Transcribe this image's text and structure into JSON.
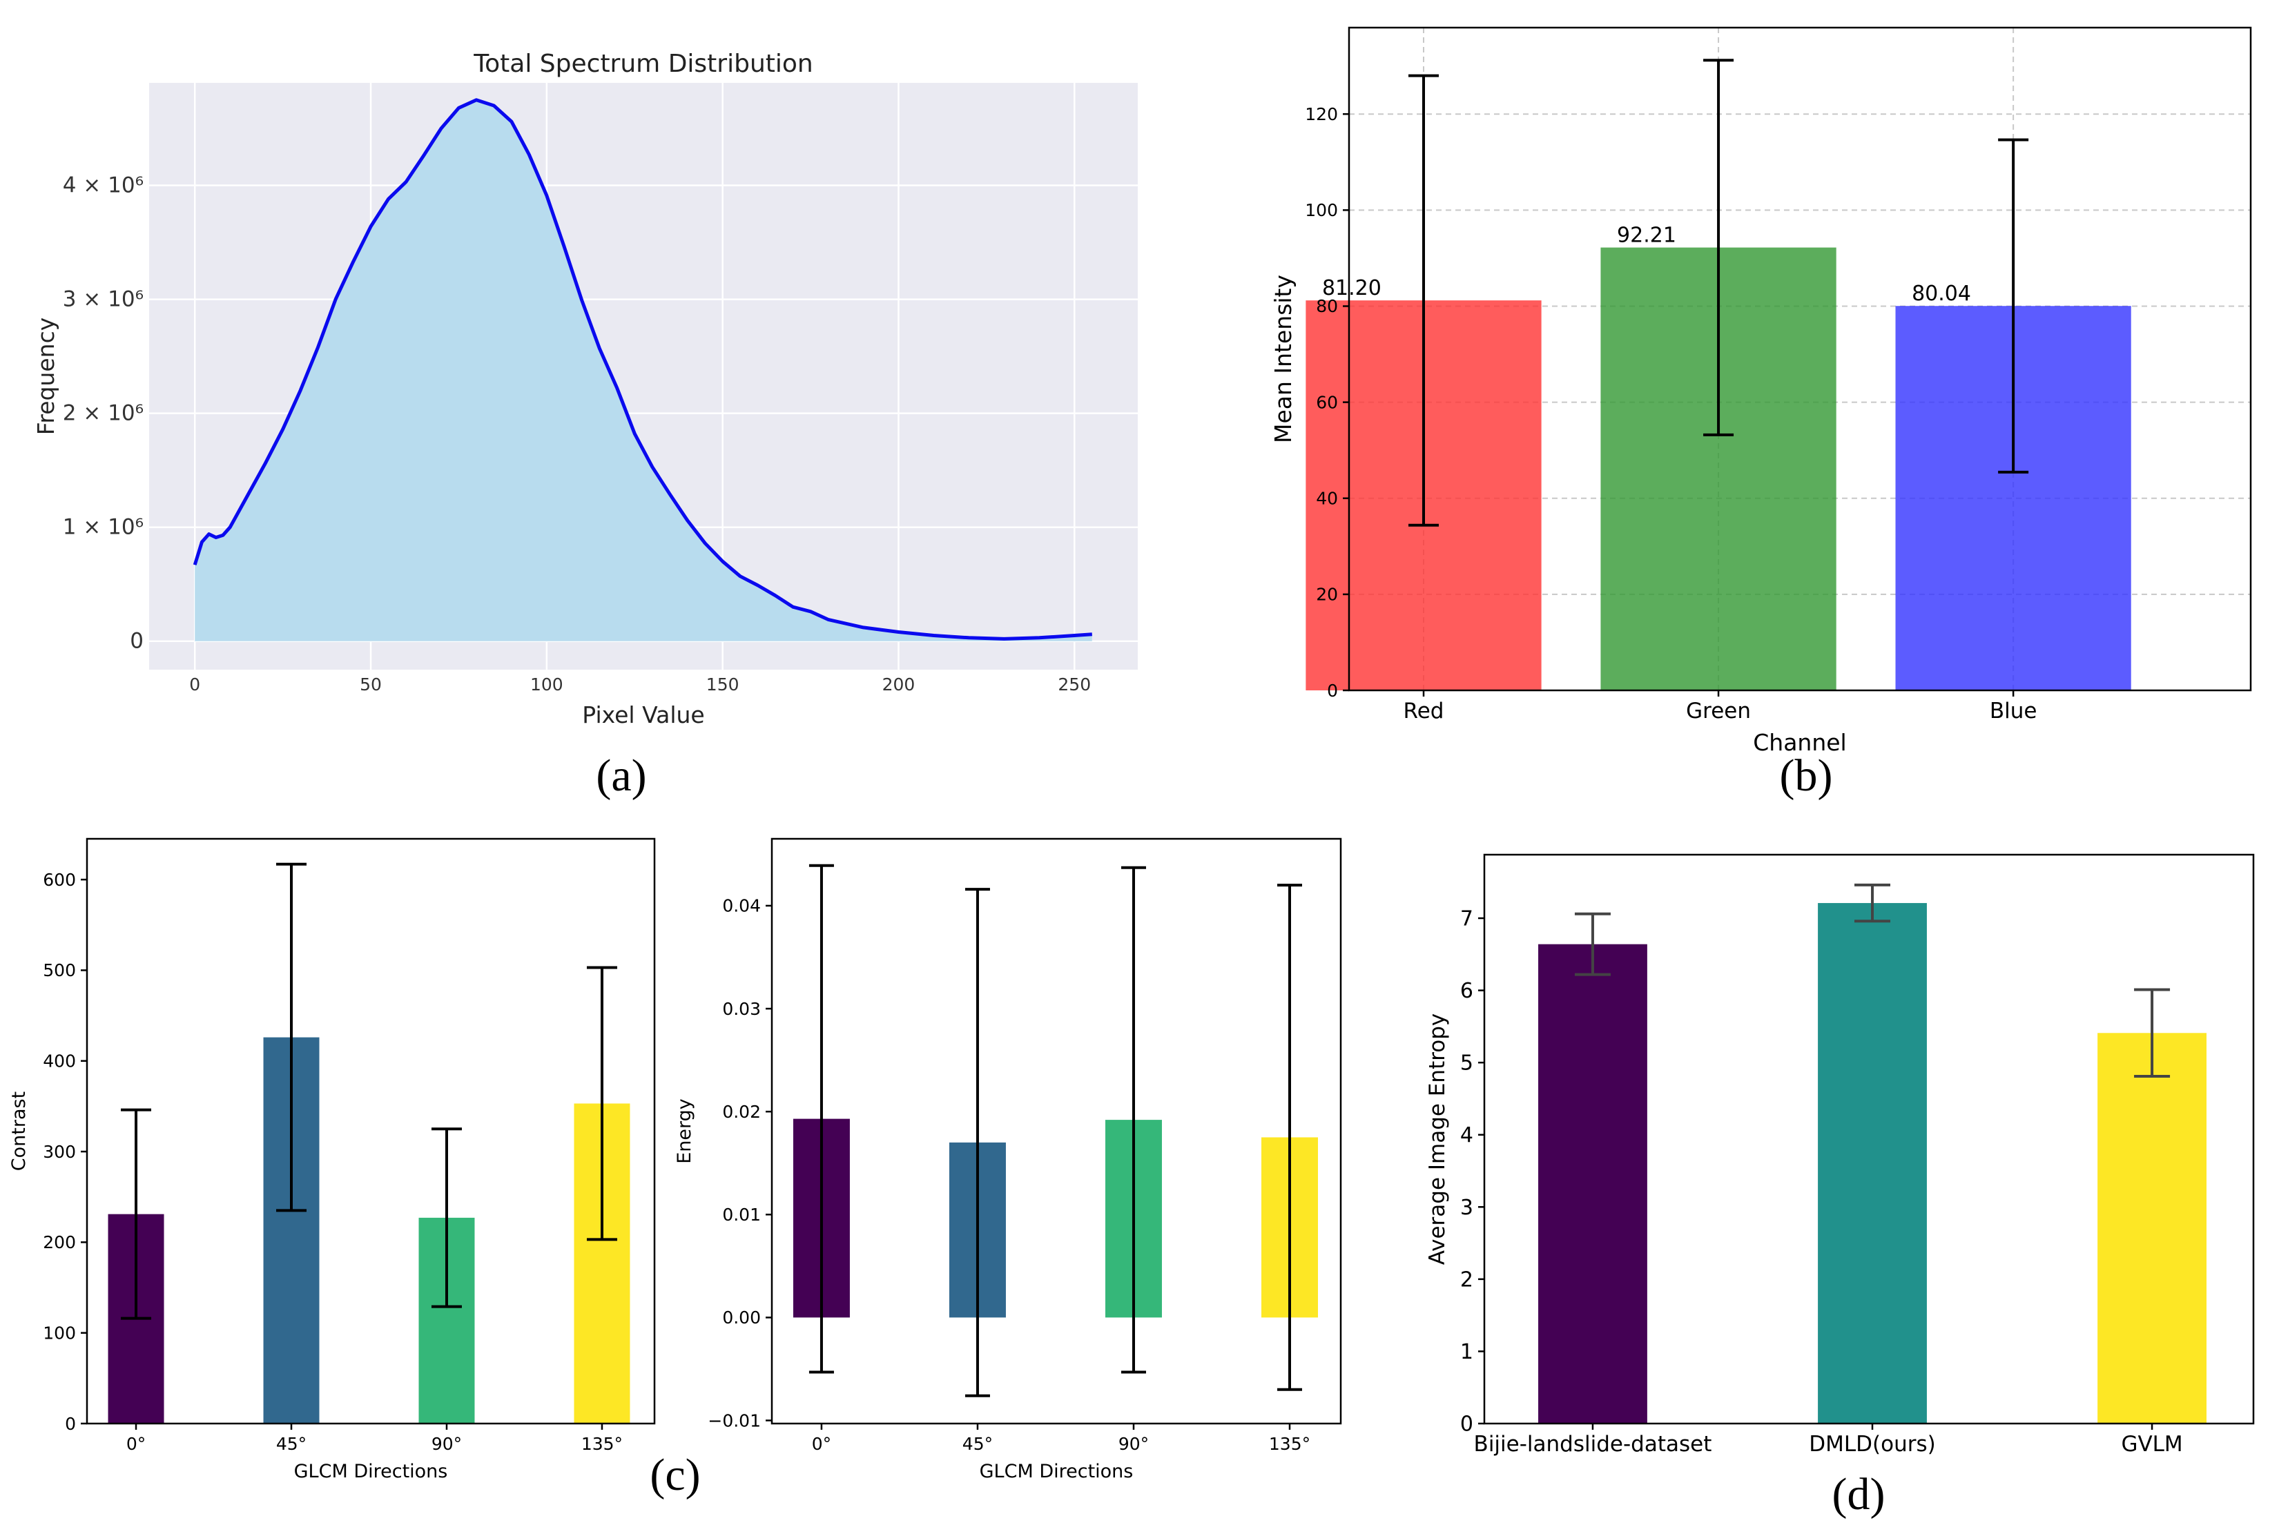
{
  "panel_labels": {
    "a": "(a)",
    "b": "(b)",
    "c": "(c)",
    "d": "(d)"
  },
  "chart_data": [
    {
      "id": "a",
      "type": "area",
      "title": "Total Spectrum Distribution",
      "xlabel": "Pixel Value",
      "ylabel": "Frequency",
      "xlim": [
        -13,
        268
      ],
      "ylim": [
        -250000,
        4900000
      ],
      "xticks": [
        0,
        50,
        100,
        150,
        200,
        250
      ],
      "yticks": [
        0,
        1000000,
        2000000,
        3000000,
        4000000
      ],
      "ytick_labels": [
        "0",
        "1 × 10⁶",
        "2 × 10⁶",
        "3 × 10⁶",
        "4 × 10⁶"
      ],
      "line_color": "#0a0aee",
      "fill_color": "#b8dcee",
      "bg_color": "#eaeaf2",
      "x": [
        0,
        2,
        4,
        6,
        8,
        10,
        15,
        20,
        25,
        30,
        35,
        40,
        45,
        50,
        55,
        60,
        65,
        70,
        75,
        80,
        85,
        90,
        95,
        100,
        105,
        110,
        115,
        120,
        125,
        130,
        135,
        140,
        145,
        150,
        155,
        160,
        165,
        170,
        175,
        180,
        190,
        200,
        210,
        220,
        230,
        240,
        250,
        255
      ],
      "y": [
        670000,
        870000,
        940000,
        910000,
        930000,
        1000000,
        1280000,
        1560000,
        1860000,
        2200000,
        2580000,
        3000000,
        3330000,
        3640000,
        3880000,
        4030000,
        4260000,
        4500000,
        4680000,
        4750000,
        4700000,
        4560000,
        4270000,
        3910000,
        3460000,
        2990000,
        2570000,
        2220000,
        1820000,
        1530000,
        1290000,
        1060000,
        860000,
        700000,
        570000,
        490000,
        400000,
        300000,
        260000,
        190000,
        120000,
        80000,
        50000,
        30000,
        20000,
        30000,
        50000,
        60000
      ]
    },
    {
      "id": "b",
      "type": "bar",
      "categories": [
        "Red",
        "Green",
        "Blue"
      ],
      "values": [
        81.2,
        92.21,
        80.04
      ],
      "value_labels": [
        "81.20",
        "92.21",
        "80.04"
      ],
      "errors": [
        46.8,
        39.0,
        34.6
      ],
      "colors": [
        "#ff3333",
        "#339933",
        "#3333ff"
      ],
      "title": "",
      "xlabel": "Channel",
      "ylabel": "Mean Intensity",
      "ylim": [
        0,
        138
      ],
      "yticks": [
        0,
        20,
        40,
        60,
        80,
        100,
        120
      ],
      "grid": true
    },
    {
      "id": "c1",
      "type": "bar",
      "categories": [
        "0°",
        "45°",
        "90°",
        "135°"
      ],
      "values": [
        231,
        426,
        227,
        353
      ],
      "errors": [
        115,
        191,
        98,
        150
      ],
      "colors": [
        "#440154",
        "#31688e",
        "#35b779",
        "#fde725"
      ],
      "xlabel": "GLCM Directions",
      "ylabel": "Contrast",
      "ylim": [
        0,
        645
      ],
      "yticks": [
        0,
        100,
        200,
        300,
        400,
        500,
        600
      ]
    },
    {
      "id": "c2",
      "type": "bar",
      "categories": [
        "0°",
        "45°",
        "90°",
        "135°"
      ],
      "values": [
        0.0193,
        0.017,
        0.0192,
        0.0175
      ],
      "errors": [
        0.0246,
        0.0246,
        0.0245,
        0.0245
      ],
      "colors": [
        "#440154",
        "#31688e",
        "#35b779",
        "#fde725"
      ],
      "xlabel": "GLCM Directions",
      "ylabel": "Energy",
      "ylim": [
        -0.0103,
        0.0465
      ],
      "yticks": [
        -0.01,
        0.0,
        0.01,
        0.02,
        0.03,
        0.04
      ],
      "ytick_labels": [
        "−0.01",
        "0.00",
        "0.01",
        "0.02",
        "0.03",
        "0.04"
      ]
    },
    {
      "id": "d",
      "type": "bar",
      "categories": [
        "Bijie-landslide-dataset",
        "DMLD(ours)",
        "GVLM"
      ],
      "values": [
        6.64,
        7.21,
        5.41
      ],
      "errors": [
        0.42,
        0.25,
        0.6
      ],
      "colors": [
        "#440154",
        "#21918c",
        "#fde725"
      ],
      "xlabel": "",
      "ylabel": "Average Image Entropy",
      "ylim": [
        0,
        7.88
      ],
      "yticks": [
        0,
        1,
        2,
        3,
        4,
        5,
        6,
        7
      ]
    }
  ]
}
